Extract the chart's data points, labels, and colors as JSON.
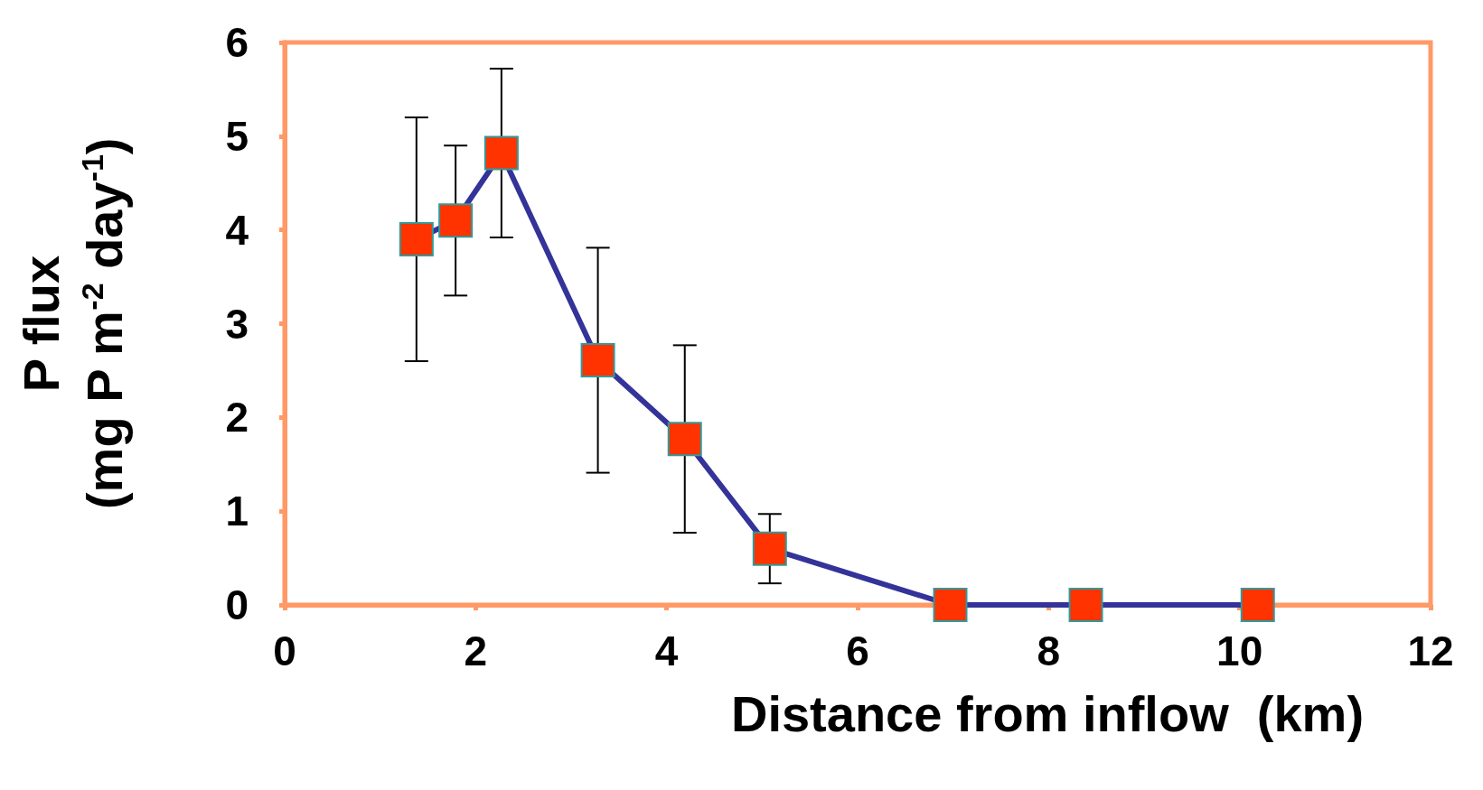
{
  "chart_data": {
    "type": "line",
    "xlabel": "Distance from inflow  (km)",
    "ylabel": "P flux\n(mg P m$^{-2}$ day$^{-1}$)",
    "x": [
      1.38,
      1.79,
      2.27,
      3.28,
      4.19,
      5.08,
      6.97,
      8.39,
      10.19
    ],
    "series": [
      {
        "color": "#333399",
        "colors": [
          "#ff3300",
          "#ff3300",
          "#ff3300",
          "#ff3300",
          "#ff3300",
          "#ff3300",
          "#ff3300",
          "#ff3300",
          "#ff3300"
        ],
        "values": [
          3.9,
          4.1,
          4.82,
          2.61,
          1.77,
          0.6,
          0,
          0,
          0
        ],
        "errors": [
          1.3,
          0.8,
          0.9,
          1.2,
          1.0,
          0.37,
          null,
          null,
          null
        ]
      }
    ],
    "xlim": [
      0,
      12
    ],
    "xticks": [
      0,
      2,
      4,
      6,
      8,
      10,
      12
    ],
    "ylim": [
      0,
      6
    ],
    "yticks": [
      0,
      1,
      2,
      3,
      4,
      5,
      6
    ],
    "marker": "square",
    "line_style": "solid",
    "grid": false
  }
}
